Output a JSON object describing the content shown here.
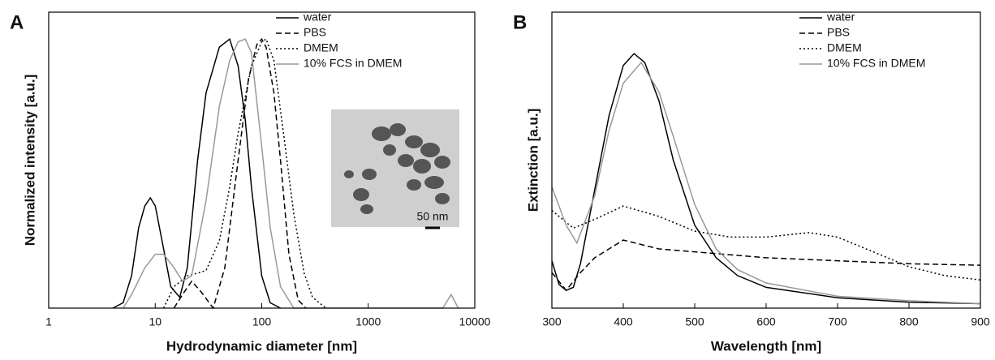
{
  "chart_data": [
    {
      "type": "line",
      "label": "A",
      "xlabel": "Hydrodynamic diameter [nm]",
      "ylabel": "Normalized intensity [a.u.]",
      "xlog": true,
      "xlim": [
        1,
        10000
      ],
      "xticks": [
        1,
        10,
        100,
        1000,
        10000
      ],
      "ylim": [
        0,
        1.1
      ],
      "legend": "upper right",
      "annotations": [
        "50 nm"
      ],
      "series": [
        {
          "name": "water",
          "color": "#000000",
          "dash": "solid",
          "x": [
            4,
            5,
            6,
            7,
            8,
            9,
            10,
            12,
            14,
            17,
            20,
            25,
            30,
            40,
            50,
            60,
            70,
            80,
            100,
            120,
            150
          ],
          "values": [
            0,
            0.02,
            0.12,
            0.3,
            0.38,
            0.41,
            0.38,
            0.22,
            0.08,
            0.04,
            0.15,
            0.55,
            0.8,
            0.97,
            1.0,
            0.9,
            0.7,
            0.45,
            0.12,
            0.02,
            0
          ]
        },
        {
          "name": "PBS",
          "color": "#000000",
          "dash": "dashed",
          "x": [
            15,
            18,
            22,
            27,
            35,
            45,
            60,
            75,
            90,
            100,
            110,
            130,
            150,
            180,
            220,
            260
          ],
          "values": [
            0,
            0.05,
            0.1,
            0.06,
            0,
            0.15,
            0.55,
            0.85,
            0.98,
            1.0,
            0.97,
            0.8,
            0.55,
            0.2,
            0.03,
            0
          ]
        },
        {
          "name": "DMEM",
          "color": "#000000",
          "dash": "dotted",
          "x": [
            12,
            15,
            20,
            25,
            30,
            40,
            50,
            60,
            80,
            100,
            110,
            130,
            160,
            200,
            250,
            300,
            400
          ],
          "values": [
            0,
            0.08,
            0.12,
            0.13,
            0.14,
            0.25,
            0.45,
            0.65,
            0.9,
            0.99,
            1.0,
            0.92,
            0.65,
            0.35,
            0.13,
            0.04,
            0
          ]
        },
        {
          "name": "10% FCS in DMEM",
          "color": "#999999",
          "dash": "solid",
          "x": [
            5,
            6,
            8,
            10,
            12,
            15,
            18,
            22,
            30,
            40,
            50,
            60,
            70,
            80,
            100,
            120,
            150,
            200,
            1000,
            5000,
            6000,
            7000
          ],
          "values": [
            0,
            0.05,
            0.15,
            0.2,
            0.2,
            0.15,
            0.1,
            0.12,
            0.4,
            0.75,
            0.92,
            0.99,
            1.0,
            0.95,
            0.6,
            0.3,
            0.08,
            0,
            0,
            0,
            0.05,
            0
          ]
        }
      ]
    },
    {
      "type": "line",
      "label": "B",
      "xlabel": "Wavelength [nm]",
      "ylabel": "Extinction [a.u.]",
      "xlog": false,
      "xlim": [
        300,
        900
      ],
      "xticks": [
        300,
        400,
        500,
        600,
        700,
        800,
        900
      ],
      "ylim": [
        0,
        1
      ],
      "legend": "upper right",
      "series": [
        {
          "name": "water",
          "color": "#000000",
          "dash": "solid",
          "x": [
            300,
            310,
            320,
            330,
            340,
            360,
            380,
            400,
            415,
            430,
            450,
            470,
            500,
            530,
            560,
            600,
            700,
            800,
            900
          ],
          "values": [
            0.16,
            0.08,
            0.06,
            0.07,
            0.15,
            0.4,
            0.65,
            0.82,
            0.86,
            0.83,
            0.7,
            0.5,
            0.28,
            0.17,
            0.11,
            0.07,
            0.035,
            0.02,
            0.015
          ]
        },
        {
          "name": "PBS",
          "color": "#000000",
          "dash": "dashed",
          "x": [
            300,
            320,
            340,
            360,
            400,
            450,
            500,
            600,
            700,
            800,
            900
          ],
          "values": [
            0.12,
            0.06,
            0.12,
            0.17,
            0.23,
            0.2,
            0.19,
            0.17,
            0.16,
            0.15,
            0.145
          ]
        },
        {
          "name": "DMEM",
          "color": "#000000",
          "dash": "dotted",
          "x": [
            300,
            330,
            360,
            400,
            450,
            500,
            550,
            600,
            660,
            700,
            750,
            800,
            850,
            900
          ],
          "values": [
            0.33,
            0.27,
            0.3,
            0.345,
            0.31,
            0.26,
            0.24,
            0.24,
            0.255,
            0.24,
            0.19,
            0.14,
            0.11,
            0.095
          ]
        },
        {
          "name": "10% FCS in DMEM",
          "color": "#999999",
          "dash": "solid",
          "x": [
            300,
            320,
            335,
            360,
            380,
            400,
            425,
            450,
            470,
            500,
            530,
            560,
            600,
            700,
            800,
            900
          ],
          "values": [
            0.41,
            0.28,
            0.22,
            0.38,
            0.6,
            0.76,
            0.83,
            0.73,
            0.58,
            0.35,
            0.2,
            0.13,
            0.085,
            0.04,
            0.025,
            0.015
          ]
        }
      ]
    }
  ]
}
